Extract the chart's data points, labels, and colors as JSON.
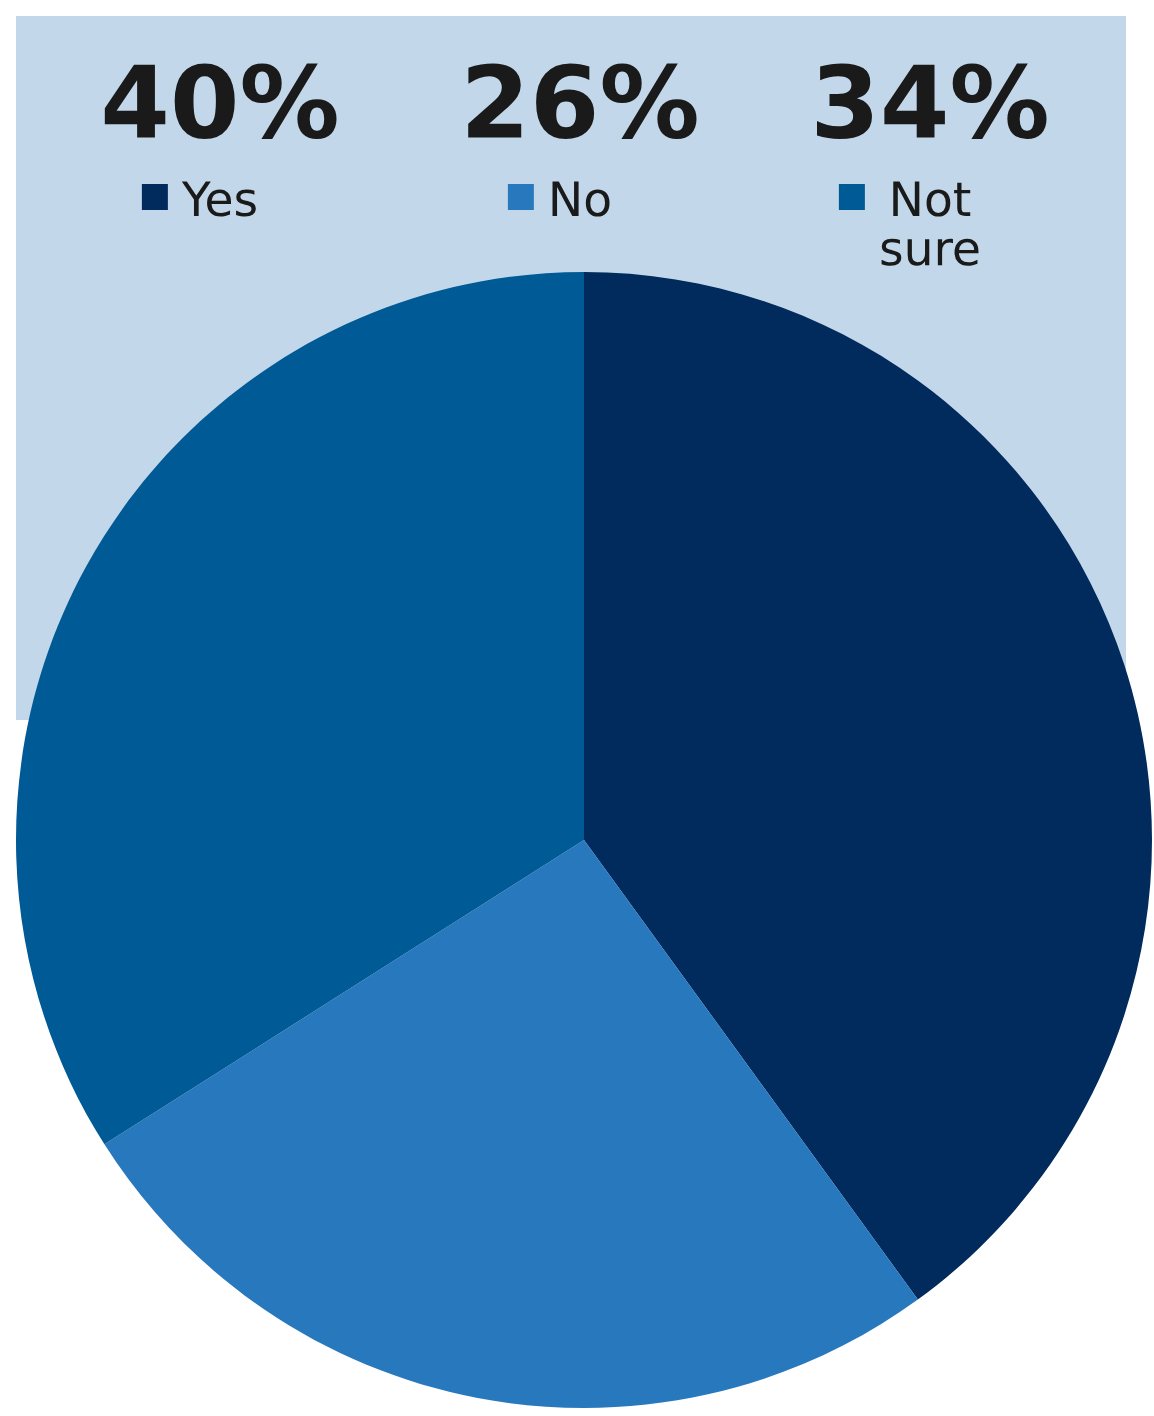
{
  "chart_data": {
    "type": "pie",
    "categories": [
      "Yes",
      "No",
      "Not sure"
    ],
    "values": [
      40,
      26,
      34
    ],
    "colors": [
      "#002b5c",
      "#2878be",
      "#005a96"
    ],
    "value_labels": [
      "40%",
      "26%",
      "34%"
    ],
    "legend": "top"
  }
}
